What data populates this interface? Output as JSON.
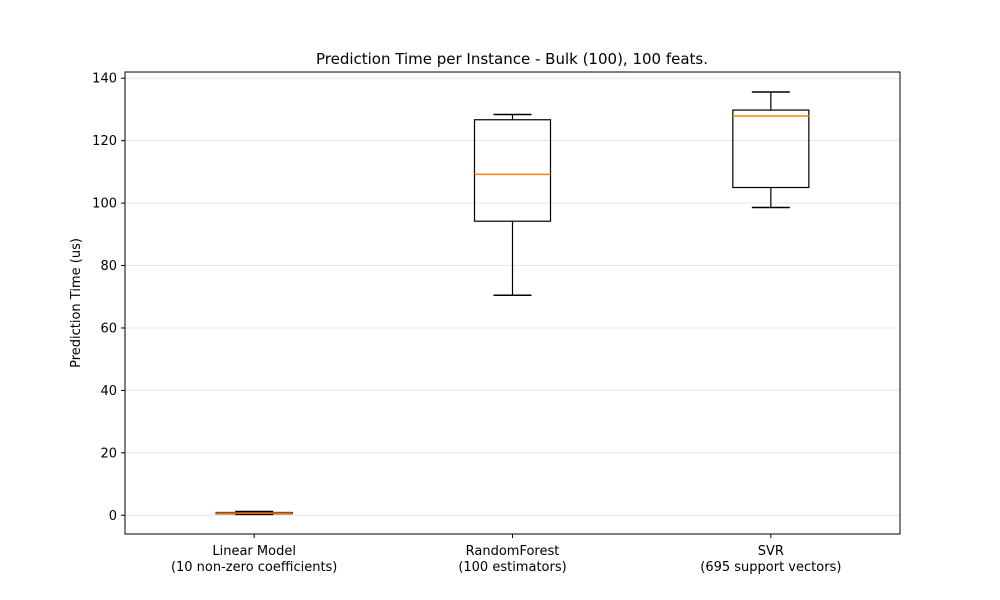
{
  "chart_data": {
    "type": "box",
    "title": "Prediction Time per Instance - Bulk (100), 100 feats.",
    "xlabel": "",
    "ylabel": "Prediction Time (us)",
    "ylim": [
      -6,
      142
    ],
    "yticks": [
      0,
      20,
      40,
      60,
      80,
      100,
      120,
      140
    ],
    "grid": "horizontal",
    "categories": [
      {
        "line1": "Linear Model",
        "line2": "(10 non-zero coefficients)"
      },
      {
        "line1": "RandomForest",
        "line2": "(100 estimators)"
      },
      {
        "line1": "SVR",
        "line2": "(695 support vectors)"
      }
    ],
    "boxes": [
      {
        "whisker_low": 0.3,
        "q1": 0.5,
        "median": 0.7,
        "q3": 0.9,
        "whisker_high": 1.2
      },
      {
        "whisker_low": 70.5,
        "q1": 94.2,
        "median": 109.2,
        "q3": 126.7,
        "whisker_high": 128.4
      },
      {
        "whisker_low": 98.6,
        "q1": 105.0,
        "median": 127.9,
        "q3": 129.8,
        "whisker_high": 135.6
      }
    ],
    "colors": {
      "box": "#000000",
      "median": "#ff7f0e",
      "grid": "#e6e6e6"
    }
  }
}
